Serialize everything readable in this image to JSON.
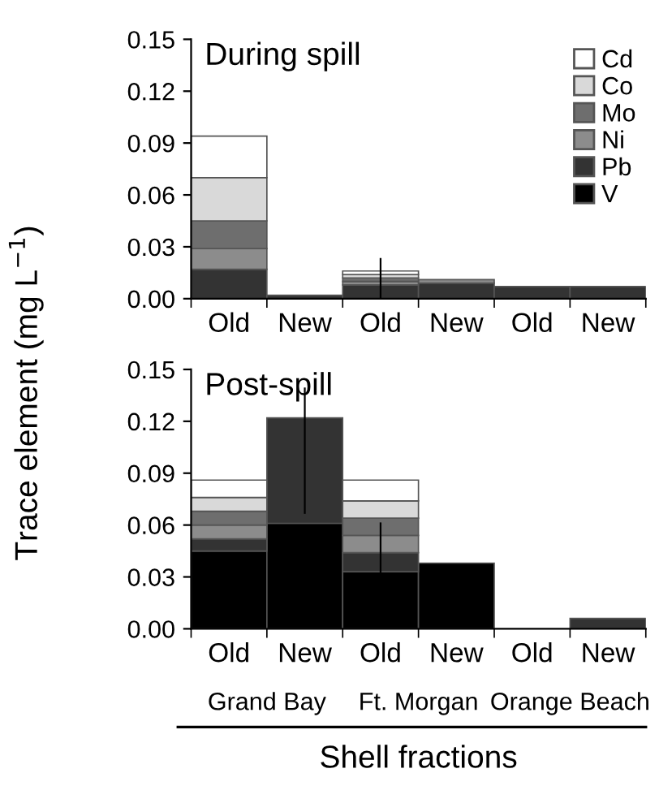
{
  "chart_data": [
    {
      "type": "bar",
      "title": "During spill",
      "stacked": true,
      "categories": [
        "Old",
        "New",
        "Old",
        "New",
        "Old",
        "New"
      ],
      "ylabel": "Trace element (mg L$^{−1}$)",
      "ylim": [
        0,
        0.15
      ],
      "yticks": [
        {
          "value": 0,
          "label": "0.00"
        },
        {
          "value": 0.03,
          "label": "0.03"
        },
        {
          "value": 0.06,
          "label": "0.06"
        },
        {
          "value": 0.09,
          "label": "0.09"
        },
        {
          "value": 0.12,
          "label": "0.12"
        },
        {
          "value": 0.15,
          "label": "0.15"
        }
      ],
      "legend": "top right",
      "grid": false,
      "series": [
        {
          "name": "V",
          "color": "#000000",
          "values": [
            null,
            null,
            null,
            null,
            null,
            null
          ]
        },
        {
          "name": "Pb",
          "color": "#333333",
          "values": [
            0.017,
            0.002,
            0.008,
            0.009,
            0.007,
            0.007
          ],
          "errors": [
            null,
            null,
            [
              0.0,
              0.023
            ],
            null,
            null,
            null
          ]
        },
        {
          "name": "Ni",
          "color": "#8c8c8c",
          "values": [
            0.012,
            null,
            0.002,
            0.002,
            null,
            null
          ]
        },
        {
          "name": "Mo",
          "color": "#6e6e6e",
          "values": [
            0.016,
            null,
            0.002,
            null,
            null,
            null
          ]
        },
        {
          "name": "Co",
          "color": "#d9d9d9",
          "values": [
            0.025,
            null,
            0.002,
            null,
            null,
            null
          ]
        },
        {
          "name": "Cd",
          "color": "#ffffff",
          "values": [
            0.024,
            null,
            0.002,
            null,
            null,
            null
          ]
        }
      ]
    },
    {
      "type": "bar",
      "title": "Post-spill",
      "stacked": true,
      "categories": [
        "Old",
        "New",
        "Old",
        "New",
        "Old",
        "New"
      ],
      "xlabel": "Shell fractions",
      "ylim": [
        0,
        0.15
      ],
      "yticks": [
        {
          "value": 0,
          "label": "0.00"
        },
        {
          "value": 0.03,
          "label": "0.03"
        },
        {
          "value": 0.06,
          "label": "0.06"
        },
        {
          "value": 0.09,
          "label": "0.09"
        },
        {
          "value": 0.12,
          "label": "0.12"
        },
        {
          "value": 0.15,
          "label": "0.15"
        }
      ],
      "legend": false,
      "grid": false,
      "annotations": [
        "Grand Bay",
        "Ft. Morgan",
        "Orange Beach"
      ],
      "series": [
        {
          "color": "#000000",
          "values": [
            0.045,
            0.061,
            0.033,
            0.038,
            null,
            null
          ],
          "errors": [
            null,
            null,
            [
              0.033,
              0.061
            ],
            null,
            null,
            null
          ]
        },
        {
          "color": "#333333",
          "values": [
            0.007,
            0.061,
            0.011,
            null,
            null,
            0.006
          ],
          "errors": [
            null,
            [
              0.067,
              0.139
            ],
            null,
            null,
            null,
            null
          ]
        },
        {
          "color": "#8c8c8c",
          "values": [
            0.008,
            null,
            0.01,
            null,
            null,
            null
          ]
        },
        {
          "color": "#6e6e6e",
          "values": [
            0.008,
            null,
            0.01,
            null,
            null,
            null
          ]
        },
        {
          "color": "#d9d9d9",
          "values": [
            0.008,
            null,
            0.01,
            null,
            null,
            null
          ]
        },
        {
          "color": "#ffffff",
          "values": [
            0.01,
            null,
            0.012,
            null,
            null,
            null
          ]
        }
      ]
    }
  ]
}
